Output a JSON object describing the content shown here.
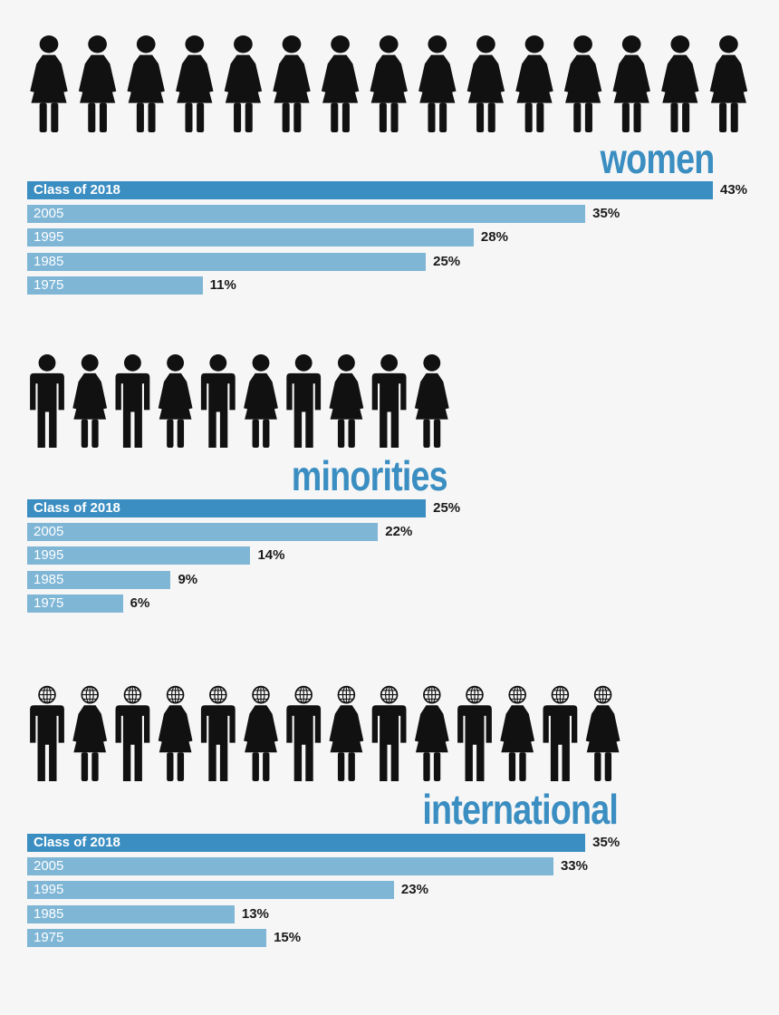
{
  "colors": {
    "background": "#f6f6f6",
    "highlight_bar": "#3b8ec1",
    "bar": "#7fb6d6",
    "title": "#3b8ec1",
    "figure": "#111111"
  },
  "chart_data": [
    {
      "type": "bar",
      "orientation": "horizontal",
      "title": "women",
      "icon_row": [
        "woman-icon",
        "woman-icon",
        "woman-icon",
        "woman-icon",
        "woman-icon",
        "woman-icon",
        "woman-icon",
        "woman-icon",
        "woman-icon",
        "woman-icon",
        "woman-icon",
        "woman-icon",
        "woman-icon",
        "woman-icon",
        "woman-icon"
      ],
      "categories": [
        "Class of 2018",
        "2005",
        "1995",
        "1985",
        "1975"
      ],
      "values": [
        43,
        35,
        28,
        25,
        11
      ],
      "value_labels": [
        "43%",
        "35%",
        "28%",
        "25%",
        "11%"
      ],
      "unit": "%",
      "xlim": [
        0,
        43
      ],
      "highlight_category": "Class of 2018"
    },
    {
      "type": "bar",
      "orientation": "horizontal",
      "title": "minorities",
      "icon_row": [
        "man-icon",
        "woman-icon",
        "man-icon",
        "woman-icon",
        "man-icon",
        "woman-icon",
        "man-icon",
        "woman-icon",
        "man-icon",
        "woman-icon"
      ],
      "categories": [
        "Class of 2018",
        "2005",
        "1995",
        "1985",
        "1975"
      ],
      "values": [
        25,
        22,
        14,
        9,
        6
      ],
      "value_labels": [
        "25%",
        "22%",
        "14%",
        "9%",
        "6%"
      ],
      "unit": "%",
      "xlim": [
        0,
        43
      ],
      "highlight_category": "Class of 2018"
    },
    {
      "type": "bar",
      "orientation": "horizontal",
      "title": "international",
      "icon_row": [
        "globe-man-icon",
        "globe-woman-icon",
        "globe-man-icon",
        "globe-woman-icon",
        "globe-man-icon",
        "globe-woman-icon",
        "globe-man-icon",
        "globe-woman-icon",
        "globe-man-icon",
        "globe-woman-icon",
        "globe-man-icon",
        "globe-woman-icon",
        "globe-man-icon",
        "globe-woman-icon"
      ],
      "categories": [
        "Class of 2018",
        "2005",
        "1995",
        "1985",
        "1975"
      ],
      "values": [
        35,
        33,
        23,
        13,
        15
      ],
      "value_labels": [
        "35%",
        "33%",
        "23%",
        "13%",
        "15%"
      ],
      "unit": "%",
      "xlim": [
        0,
        43
      ],
      "highlight_category": "Class of 2018"
    }
  ]
}
